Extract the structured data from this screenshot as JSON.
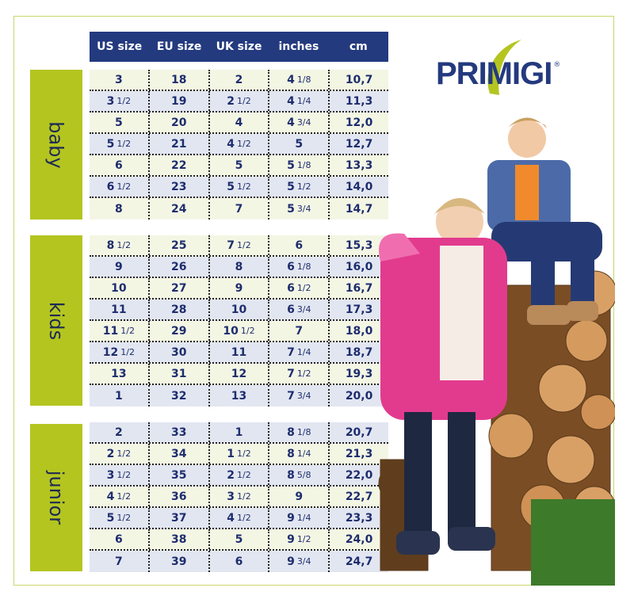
{
  "brand": {
    "name": "PRIMIGI",
    "mark": "®",
    "accent": "#b4c520",
    "navy": "#243a7f"
  },
  "columns": [
    "US size",
    "EU size",
    "UK size",
    "inches",
    "cm"
  ],
  "groups": [
    {
      "label": "baby",
      "rows": [
        [
          "3",
          "18",
          "2",
          "4 1/8",
          "10,7"
        ],
        [
          "3 1/2",
          "19",
          "2 1/2",
          "4 1/4",
          "11,3"
        ],
        [
          "5",
          "20",
          "4",
          "4 3/4",
          "12,0"
        ],
        [
          "5 1/2",
          "21",
          "4 1/2",
          "5",
          "12,7"
        ],
        [
          "6",
          "22",
          "5",
          "5 1/8",
          "13,3"
        ],
        [
          "6 1/2",
          "23",
          "5 1/2",
          "5 1/2",
          "14,0"
        ],
        [
          "8",
          "24",
          "7",
          "5 3/4",
          "14,7"
        ]
      ]
    },
    {
      "label": "kids",
      "rows": [
        [
          "8 1/2",
          "25",
          "7 1/2",
          "6",
          "15,3"
        ],
        [
          "9",
          "26",
          "8",
          "6 1/8",
          "16,0"
        ],
        [
          "10",
          "27",
          "9",
          "6 1/2",
          "16,7"
        ],
        [
          "11",
          "28",
          "10",
          "6 3/4",
          "17,3"
        ],
        [
          "11 1/2",
          "29",
          "10 1/2",
          "7",
          "18,0"
        ],
        [
          "12 1/2",
          "30",
          "11",
          "7 1/4",
          "18,7"
        ],
        [
          "13",
          "31",
          "12",
          "7 1/2",
          "19,3"
        ],
        [
          "1",
          "32",
          "13",
          "7 3/4",
          "20,0"
        ]
      ]
    },
    {
      "label": "junior",
      "rows": [
        [
          "2",
          "33",
          "1",
          "8 1/8",
          "20,7"
        ],
        [
          "2 1/2",
          "34",
          "1 1/2",
          "8 1/4",
          "21,3"
        ],
        [
          "3 1/2",
          "35",
          "2 1/2",
          "8 5/8",
          "22,0"
        ],
        [
          "4 1/2",
          "36",
          "3 1/2",
          "9",
          "22,7"
        ],
        [
          "5 1/2",
          "37",
          "4 1/2",
          "9 1/4",
          "23,3"
        ],
        [
          "6",
          "38",
          "5",
          "9 1/2",
          "24,0"
        ],
        [
          "7",
          "39",
          "6",
          "9 3/4",
          "24,7"
        ]
      ]
    }
  ]
}
